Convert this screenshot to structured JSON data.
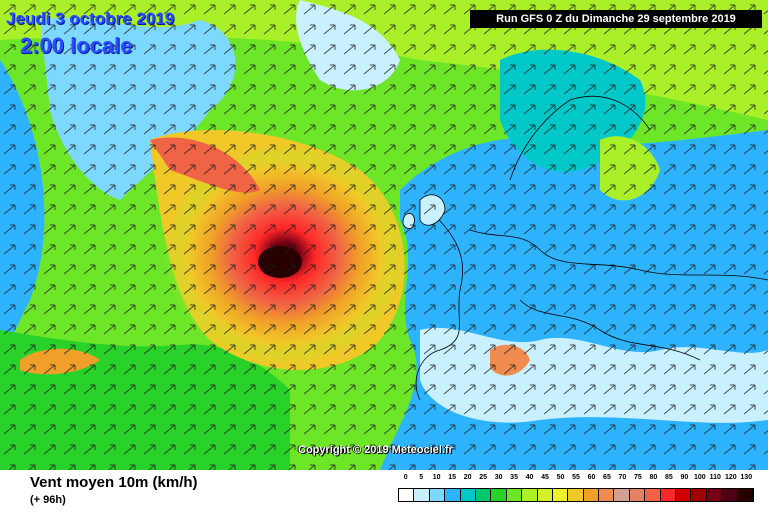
{
  "header": {
    "date": "Jeudi 3 octobre 2019",
    "time": "2:00 locale",
    "run": "Run GFS 0 Z du Dimanche 29 septembre 2019"
  },
  "copyright": "Copyright © 2019 Meteociel.fr",
  "footer": {
    "title": "Vent moyen 10m (km/h)",
    "subtitle": "(+ 96h)"
  },
  "legend": {
    "ticks": [
      "0",
      "5",
      "10",
      "15",
      "20",
      "25",
      "30",
      "35",
      "40",
      "45",
      "50",
      "55",
      "60",
      "65",
      "70",
      "75",
      "80",
      "85",
      "90",
      "100",
      "110",
      "120",
      "130"
    ],
    "colors": [
      "#ffffff",
      "#c8f0ff",
      "#7dd8ff",
      "#2eb4ff",
      "#00c8c8",
      "#00c86e",
      "#28d228",
      "#6ee628",
      "#aaf028",
      "#d2f028",
      "#f0f028",
      "#f0c828",
      "#f0a028",
      "#f08c50",
      "#d2a090",
      "#e68264",
      "#f06446",
      "#ff2828",
      "#d20000",
      "#a00000",
      "#780014",
      "#500014",
      "#280000"
    ]
  },
  "map": {
    "colors": {
      "calm": "#ffffff",
      "light": "#8ce0ff",
      "sea_breeze": "#28d228",
      "moderate": "#b4f028",
      "strong": "#f0a028",
      "gale": "#ff2828",
      "storm": "#a00000",
      "land_border": "#000000"
    },
    "feature": "storm-cyclone"
  }
}
